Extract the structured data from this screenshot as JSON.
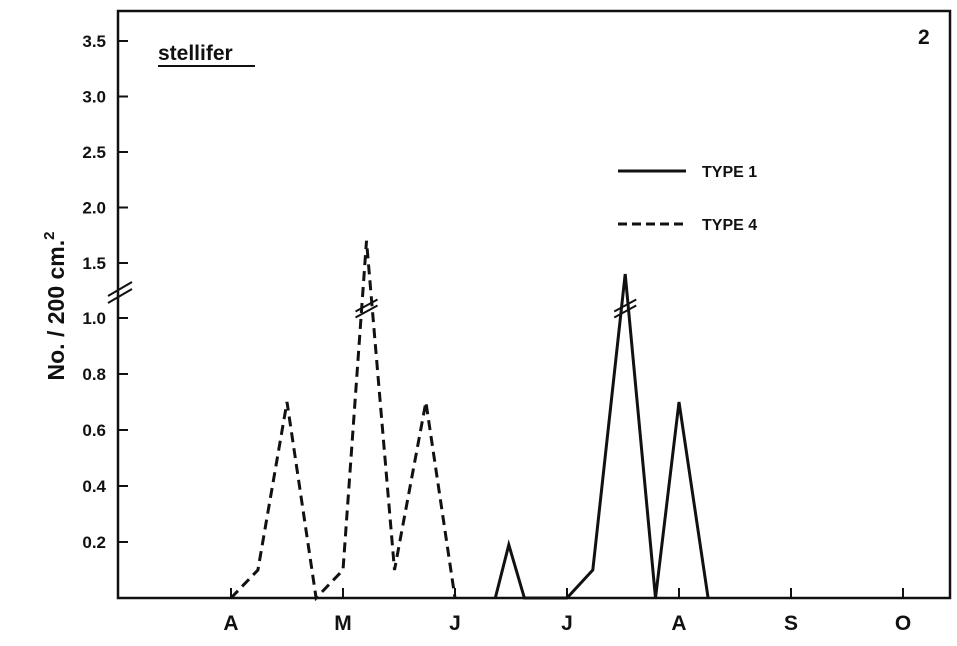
{
  "chart_data": {
    "type": "line",
    "title": "stellifer",
    "panel_label": "2",
    "ylabel": "No. / 200 cm.",
    "ylabel_superscript": "2",
    "y_ticks_lower": [
      "0.2",
      "0.4",
      "0.6",
      "0.8",
      "1.0"
    ],
    "y_ticks_upper": [
      "1.5",
      "2.0",
      "2.5",
      "3.0",
      "3.5"
    ],
    "y_axis_break": true,
    "x_month_labels": [
      "A",
      "M",
      "J",
      "J",
      "A",
      "S",
      "O"
    ],
    "legend": {
      "placement": "top-right",
      "entries": [
        {
          "label": "TYPE 1",
          "style": "solid"
        },
        {
          "label": "TYPE 4",
          "style": "dashed"
        }
      ]
    },
    "series": [
      {
        "name": "TYPE 1",
        "style": "solid",
        "points": [
          {
            "month": 2.36,
            "y": 0
          },
          {
            "month": 2.48,
            "y": 0.19
          },
          {
            "month": 2.62,
            "y": 0
          },
          {
            "month": 3.0,
            "y": 0
          },
          {
            "month": 3.23,
            "y": 0.1
          },
          {
            "month": 3.52,
            "y": 1.4
          },
          {
            "month": 3.79,
            "y": 0
          },
          {
            "month": 4.0,
            "y": 0.7
          },
          {
            "month": 4.26,
            "y": 0
          }
        ]
      },
      {
        "name": "TYPE 4",
        "style": "dashed",
        "points": [
          {
            "month": 0.0,
            "y": 0
          },
          {
            "month": 0.24,
            "y": 0.1
          },
          {
            "month": 0.5,
            "y": 0.7
          },
          {
            "month": 0.76,
            "y": 0
          },
          {
            "month": 1.0,
            "y": 0.1
          },
          {
            "month": 1.21,
            "y": 1.7
          },
          {
            "month": 1.46,
            "y": 0.1
          },
          {
            "month": 1.74,
            "y": 0.7
          },
          {
            "month": 2.0,
            "y": 0
          }
        ]
      }
    ]
  }
}
